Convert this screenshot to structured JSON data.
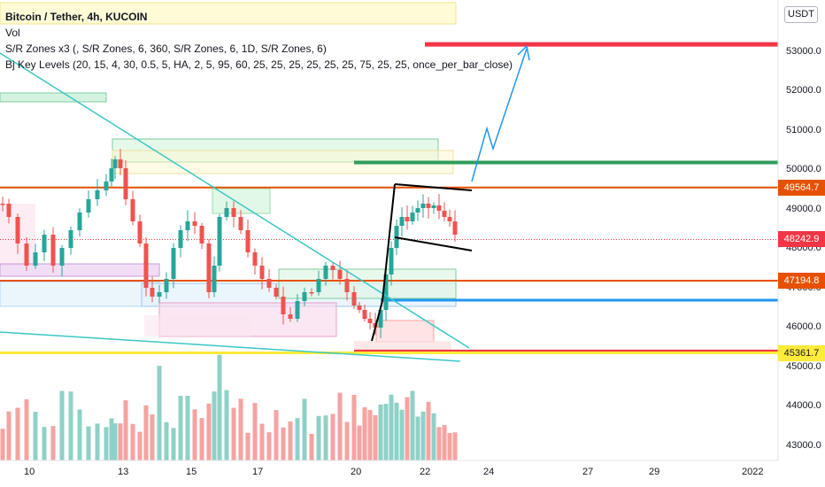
{
  "legend": {
    "title": "Bitcoin / Tether, 4h, KUCOIN",
    "vol": "Vol",
    "indicator1": "S/R Zones x3 (, S/R Zones, 6, 360, S/R Zones, 6, 1D, S/R Zones, 6)",
    "indicator2": "Bj Key Levels (20, 15, 4, 30, 0.5, 5, HA, 2, 5, 95, 60, 25, 25, 25, 25, 25, 25, 75, 25, 25, once_per_bar_close)"
  },
  "currency": "USDT",
  "colors": {
    "up": "#26a69a",
    "down": "#ef5350",
    "vol_up": "#8fd1c7",
    "vol_down": "#f5a3a1",
    "resistance_red": "#f23645",
    "orange": "#e65100",
    "green_line": "#2e9d5a",
    "blue_line": "#2196f3",
    "yellow_line": "#ffeb3b",
    "cyan_trend": "#3bc7c7"
  },
  "price_labels": [
    {
      "value": "49564.7",
      "color": "#e65100",
      "text_color": "#ffffff"
    },
    {
      "value": "48242.9",
      "color": "#f23645",
      "text_color": "#ffffff"
    },
    {
      "value": "47194.8",
      "color": "#e65100",
      "text_color": "#ffffff"
    },
    {
      "value": "45361.7",
      "color": "#ffeb3b",
      "text_color": "#131722"
    }
  ],
  "chart_data": {
    "type": "candlestick",
    "yticks": [
      "53000.0",
      "52000.0",
      "51000.0",
      "50000.0",
      "49000.0",
      "48000.0",
      "47000.0",
      "46000.0",
      "45000.0",
      "44000.0",
      "43000.0"
    ],
    "xticks": [
      "10",
      "13",
      "15",
      "17",
      "20",
      "22",
      "24",
      "27",
      "29",
      "2022"
    ],
    "levels": [
      53200,
      50200,
      49564.7,
      47194.8,
      46700,
      45400,
      45361.7
    ],
    "last_price": 48242.9
  }
}
